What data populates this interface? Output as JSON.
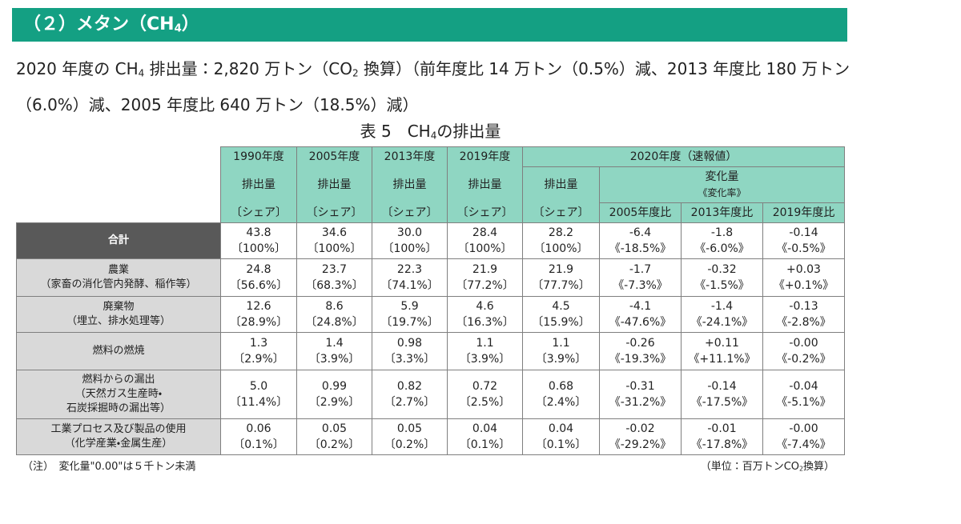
{
  "header": {
    "title": [
      "（２）メタン（CH",
      "4",
      "）"
    ]
  },
  "summary": [
    "2020 年度の CH",
    "4",
    " 排出量：2,820 万トン（CO",
    "2",
    " 換算）（前年度比 14 万トン（0.5%）減、2013 年度比 180 万トン（6.0%）減、2005 年度比 640 万トン（18.5%）減）"
  ],
  "caption": [
    "表 5　CH",
    "4",
    "の排出量"
  ],
  "table": {
    "years": [
      "1990年度",
      "2005年度",
      "2013年度",
      "2019年度"
    ],
    "emission": "排出量",
    "share": "〔シェア〕",
    "year2020": "2020年度（速報値）",
    "change": "変化量",
    "change_rate": "《変化率》",
    "compare": [
      "2005年度比",
      "2013年度比",
      "2019年度比"
    ],
    "rows": [
      {
        "label": [
          "合計"
        ],
        "cells": [
          [
            "43.8",
            "〔100%〕"
          ],
          [
            "34.6",
            "〔100%〕"
          ],
          [
            "30.0",
            "〔100%〕"
          ],
          [
            "28.4",
            "〔100%〕"
          ],
          [
            "28.2",
            "〔100%〕"
          ],
          [
            "-6.4",
            "《-18.5%》"
          ],
          [
            "-1.8",
            "《-6.0%》"
          ],
          [
            "-0.14",
            "《-0.5%》"
          ]
        ]
      },
      {
        "label": [
          "農業",
          "（家畜の消化管内発酵、稲作等）"
        ],
        "cells": [
          [
            "24.8",
            "〔56.6%〕"
          ],
          [
            "23.7",
            "〔68.3%〕"
          ],
          [
            "22.3",
            "〔74.1%〕"
          ],
          [
            "21.9",
            "〔77.2%〕"
          ],
          [
            "21.9",
            "〔77.7%〕"
          ],
          [
            "-1.7",
            "《-7.3%》"
          ],
          [
            "-0.32",
            "《-1.5%》"
          ],
          [
            "+0.03",
            "《+0.1%》"
          ]
        ]
      },
      {
        "label": [
          "廃棄物",
          "（埋立、排水処理等）"
        ],
        "cells": [
          [
            "12.6",
            "〔28.9%〕"
          ],
          [
            "8.6",
            "〔24.8%〕"
          ],
          [
            "5.9",
            "〔19.7%〕"
          ],
          [
            "4.6",
            "〔16.3%〕"
          ],
          [
            "4.5",
            "〔15.9%〕"
          ],
          [
            "-4.1",
            "《-47.6%》"
          ],
          [
            "-1.4",
            "《-24.1%》"
          ],
          [
            "-0.13",
            "《-2.8%》"
          ]
        ]
      },
      {
        "label": [
          "燃料の燃焼"
        ],
        "cells": [
          [
            "1.3",
            "〔2.9%〕"
          ],
          [
            "1.4",
            "〔3.9%〕"
          ],
          [
            "0.98",
            "〔3.3%〕"
          ],
          [
            "1.1",
            "〔3.9%〕"
          ],
          [
            "1.1",
            "〔3.9%〕"
          ],
          [
            "-0.26",
            "《-19.3%》"
          ],
          [
            "+0.11",
            "《+11.1%》"
          ],
          [
            "-0.00",
            "《-0.2%》"
          ]
        ]
      },
      {
        "label": [
          "燃料からの漏出",
          "（天然ガス生産時・",
          "石炭採掘時の漏出等）"
        ],
        "cells": [
          [
            "5.0",
            "〔11.4%〕"
          ],
          [
            "0.99",
            "〔2.9%〕"
          ],
          [
            "0.82",
            "〔2.7%〕"
          ],
          [
            "0.72",
            "〔2.5%〕"
          ],
          [
            "0.68",
            "〔2.4%〕"
          ],
          [
            "-0.31",
            "《-31.2%》"
          ],
          [
            "-0.14",
            "《-17.5%》"
          ],
          [
            "-0.04",
            "《-5.1%》"
          ]
        ]
      },
      {
        "label": [
          "工業プロセス及び製品の使用",
          "（化学産業・金属生産）"
        ],
        "cells": [
          [
            "0.06",
            "〔0.1%〕"
          ],
          [
            "0.05",
            "〔0.2%〕"
          ],
          [
            "0.05",
            "〔0.2%〕"
          ],
          [
            "0.04",
            "〔0.1%〕"
          ],
          [
            "0.04",
            "〔0.1%〕"
          ],
          [
            "-0.02",
            "《-29.2%》"
          ],
          [
            "-0.01",
            "《-17.8%》"
          ],
          [
            "-0.00",
            "《-7.4%》"
          ]
        ]
      }
    ]
  },
  "note": "（注）　変化量\"0.00\"は５千トン未満",
  "unit": [
    "（単位：百万トンCO",
    "2",
    "換算）"
  ]
}
